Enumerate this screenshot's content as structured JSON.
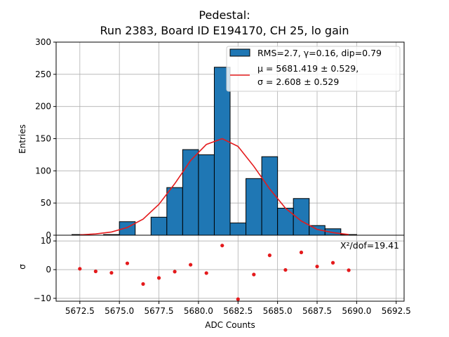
{
  "chart_data": {
    "type": "bar",
    "title_line1": "Pedestal:",
    "title_line2": "Run 2383, Board ID E194170, CH 25, lo gain",
    "xlabel": "ADC Counts",
    "ylabel_main": "Entries",
    "ylabel_resid": "σ",
    "xlim": [
      5671,
      5693
    ],
    "ylim_main": [
      0,
      300
    ],
    "ylim_resid": [
      -11,
      12
    ],
    "xticks": [
      5672.5,
      5675.0,
      5677.5,
      5680.0,
      5682.5,
      5685.0,
      5687.5,
      5690.0,
      5692.5
    ],
    "xtick_labels": [
      "5672.5",
      "5675.0",
      "5677.5",
      "5680.0",
      "5682.5",
      "5685.0",
      "5687.5",
      "5690.0",
      "5692.5"
    ],
    "yticks_main": [
      0,
      50,
      100,
      150,
      200,
      250,
      300
    ],
    "ytick_labels_main": [
      "0",
      "50",
      "100",
      "150",
      "200",
      "250",
      "300"
    ],
    "yticks_resid": [
      -10,
      0,
      10
    ],
    "ytick_labels_resid": [
      "−10",
      "0",
      "10"
    ],
    "grid": true,
    "histogram": {
      "name": "RMS=2.7, γ=0.16, dip=0.79",
      "bin_edges": [
        5672,
        5673,
        5674,
        5675,
        5676,
        5677,
        5678,
        5679,
        5680,
        5681,
        5682,
        5683,
        5684,
        5685,
        5686,
        5687,
        5688,
        5689,
        5690
      ],
      "values": [
        1,
        0,
        1,
        21,
        0,
        28,
        74,
        133,
        125,
        261,
        19,
        88,
        122,
        42,
        57,
        15,
        10,
        1
      ],
      "color": "#1f77b4"
    },
    "fit": {
      "name_line1": "μ = 5681.419 ± 0.529,",
      "name_line2": "σ = 2.608 ± 0.529",
      "color": "#e41a1c",
      "x": [
        5672.5,
        5673.5,
        5674.5,
        5675.5,
        5676.5,
        5677.5,
        5678.5,
        5679.5,
        5680.5,
        5681.5,
        5682.5,
        5683.5,
        5684.5,
        5685.5,
        5686.5,
        5687.5,
        5688.5,
        5689.5
      ],
      "y": [
        0.5,
        2,
        5,
        12,
        25,
        48,
        80,
        116,
        141,
        150,
        138,
        107,
        72,
        42,
        22,
        9,
        4,
        1
      ]
    },
    "residuals": {
      "x": [
        5672.5,
        5673.5,
        5674.5,
        5675.5,
        5676.5,
        5677.5,
        5678.5,
        5679.5,
        5680.5,
        5681.5,
        5682.5,
        5683.5,
        5684.5,
        5685.5,
        5686.5,
        5687.5,
        5688.5,
        5689.5
      ],
      "y": [
        0.3,
        -0.6,
        -1.1,
        2.2,
        -5.0,
        -2.9,
        -0.7,
        1.7,
        -1.2,
        8.4,
        -10.3,
        -1.7,
        5.0,
        -0.1,
        6.0,
        1.1,
        2.4,
        -0.2
      ],
      "color": "#e41a1c"
    },
    "chi2_label": "X²/dof=19.41",
    "legend_placement": "top-right"
  }
}
